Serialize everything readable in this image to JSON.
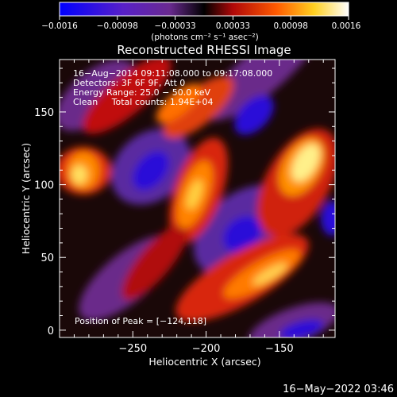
{
  "colorbar": {
    "tick_labels": [
      "−0.0016",
      "−0.00098",
      "−0.00033",
      "0.00033",
      "0.00098",
      "0.0016"
    ],
    "units_label": "(photons cm⁻² s⁻¹ asec⁻²)",
    "range": [
      -0.0016,
      0.0016
    ]
  },
  "plot": {
    "title": "Reconstructed RHESSI Image",
    "info_lines": [
      "16−Aug−2014 09:11:08.000 to 09:17:08.000",
      "Detectors: 3F 6F 9F, Att 0",
      "Energy Range: 25.0 − 50.0 keV",
      "Clean     Total counts: 1.94E+04"
    ],
    "peak_label": "Position of Peak = [−124,118]"
  },
  "footer": {
    "timestamp": "16−May−2022 03:46"
  },
  "chart_data": {
    "type": "heatmap",
    "title": "Reconstructed RHESSI Image",
    "xlabel": "Heliocentric X (arcsec)",
    "ylabel": "Heliocentric Y (arcsec)",
    "xlim": [
      -300,
      -112
    ],
    "ylim": [
      -5,
      186
    ],
    "x_ticks": [
      -250,
      -200,
      -150
    ],
    "x_tick_labels": [
      "−250",
      "−200",
      "−150"
    ],
    "y_ticks": [
      0,
      50,
      100,
      150
    ],
    "y_tick_labels": [
      "0",
      "50",
      "100",
      "150"
    ],
    "value_range": [
      -0.0016,
      0.0016
    ],
    "peak_position": [
      -124,
      118
    ],
    "colormap": [
      "#0000ff",
      "#7030a0",
      "#000000",
      "#c81010",
      "#ff7800",
      "#ffff78",
      "#ffffff"
    ]
  }
}
